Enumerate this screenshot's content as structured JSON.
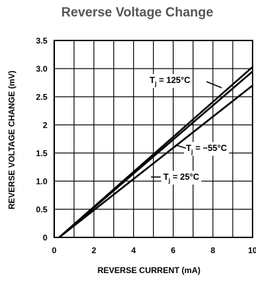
{
  "chart_data": {
    "type": "line",
    "title": "Reverse Voltage Change",
    "xlabel": "REVERSE CURRENT (mA)",
    "ylabel": "REVERSE VOLTAGE CHANGE (mV)",
    "xlim": [
      0,
      10
    ],
    "ylim": [
      0,
      3.5
    ],
    "x_ticks": [
      "0",
      "2",
      "4",
      "6",
      "8",
      "10"
    ],
    "y_ticks": [
      "0",
      "0.5",
      "1.0",
      "1.5",
      "2",
      "2.5",
      "3.0",
      "3.5"
    ],
    "grid": true,
    "line_color": "#000000",
    "series": [
      {
        "name": "T_j = 125°C",
        "label_main": "T",
        "label_sub": "j",
        "label_rest": " = 125°C",
        "x": [
          0.25,
          10
        ],
        "y": [
          0,
          3.03
        ]
      },
      {
        "name": "T_j = −55°C",
        "label_main": "T",
        "label_sub": "j",
        "label_rest": " = −55°C",
        "x": [
          0.25,
          10
        ],
        "y": [
          0,
          2.95
        ]
      },
      {
        "name": "T_j = 25°C",
        "label_main": "T",
        "label_sub": "j",
        "label_rest": " = 25°C",
        "x": [
          0.25,
          10
        ],
        "y": [
          0,
          2.7
        ]
      }
    ]
  }
}
